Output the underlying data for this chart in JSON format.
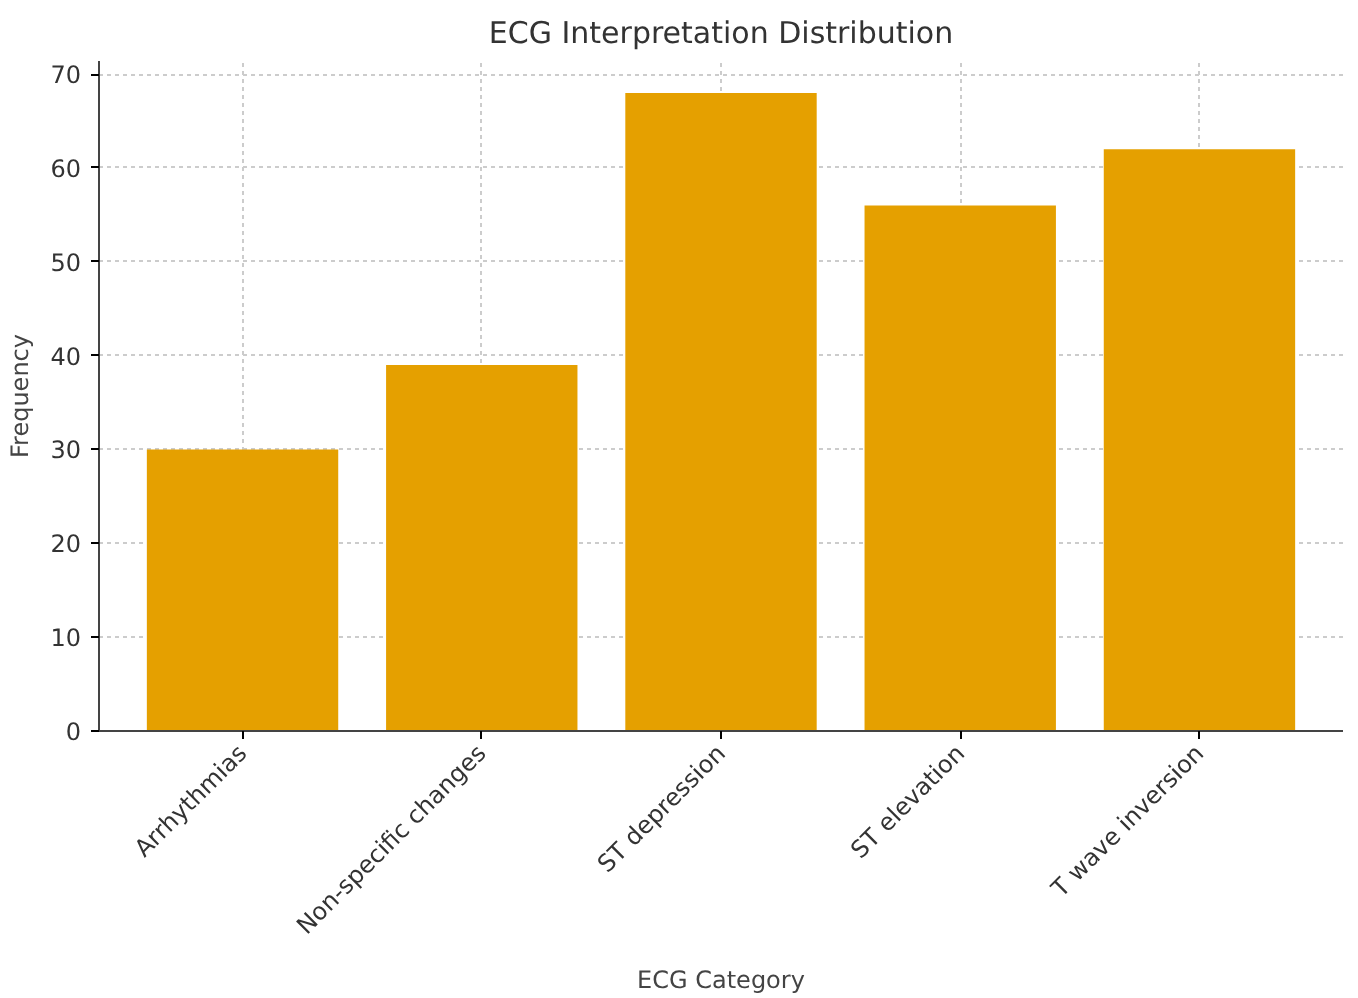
{
  "chart_data": {
    "type": "bar",
    "title": "ECG Interpretation Distribution",
    "xlabel": "ECG Category",
    "ylabel": "Frequency",
    "categories": [
      "Arrhythmias",
      "Non-specific changes",
      "ST depression",
      "ST elevation",
      "T wave inversion"
    ],
    "values": [
      30,
      39,
      68,
      56,
      62
    ],
    "color": "#e5a000",
    "ylim": [
      0,
      71.4
    ],
    "yticks": [
      0,
      10,
      20,
      30,
      40,
      50,
      60,
      70
    ],
    "grid": true
  }
}
